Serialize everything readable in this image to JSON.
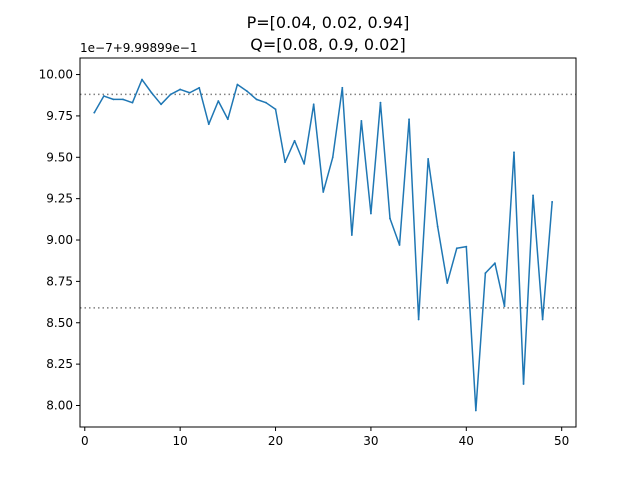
{
  "chart_data": {
    "type": "line",
    "title_line1": "P=[0.04, 0.02, 0.94]",
    "title_line2": "Q=[0.08, 0.9, 0.02]",
    "offset_text": "1e−7+9.99899e−1",
    "xlabel": "",
    "ylabel": "",
    "xlim": [
      -0.5,
      51.5
    ],
    "ylim": [
      7.87,
      10.1
    ],
    "x_ticks": [
      0,
      10,
      20,
      30,
      40,
      50
    ],
    "x_tick_labels": [
      "0",
      "10",
      "20",
      "30",
      "40",
      "50"
    ],
    "y_ticks": [
      8.0,
      8.25,
      8.5,
      8.75,
      9.0,
      9.25,
      9.5,
      9.75,
      10.0
    ],
    "y_tick_labels": [
      "8.00",
      "8.25",
      "8.50",
      "8.75",
      "9.00",
      "9.25",
      "9.50",
      "9.75",
      "10.00"
    ],
    "grid": false,
    "legend": "none",
    "line_color": "#1f77b4",
    "hline_color": "#808080",
    "hlines": [
      9.88,
      8.59
    ],
    "series": [
      {
        "x": [
          1,
          2,
          3,
          4,
          5,
          6,
          7,
          8,
          9,
          10,
          11,
          12,
          13,
          14,
          15,
          16,
          17,
          18,
          19,
          20,
          21,
          22,
          23,
          24,
          25,
          26,
          27,
          28,
          29,
          30,
          31,
          32,
          33,
          34,
          35,
          36,
          37,
          38,
          39,
          40,
          41,
          42,
          43,
          44,
          45,
          46,
          47,
          48,
          49
        ],
        "values": [
          9.77,
          9.87,
          9.85,
          9.85,
          9.83,
          9.97,
          9.89,
          9.82,
          9.88,
          9.91,
          9.89,
          9.92,
          9.7,
          9.84,
          9.73,
          9.94,
          9.9,
          9.85,
          9.83,
          9.79,
          9.47,
          9.6,
          9.46,
          9.82,
          9.29,
          9.5,
          9.92,
          9.03,
          9.72,
          9.16,
          9.83,
          9.13,
          8.97,
          9.73,
          8.52,
          9.49,
          9.08,
          8.74,
          8.95,
          8.96,
          7.97,
          8.8,
          8.86,
          8.6,
          9.53,
          8.13,
          9.27,
          8.52,
          9.23
        ]
      }
    ]
  }
}
